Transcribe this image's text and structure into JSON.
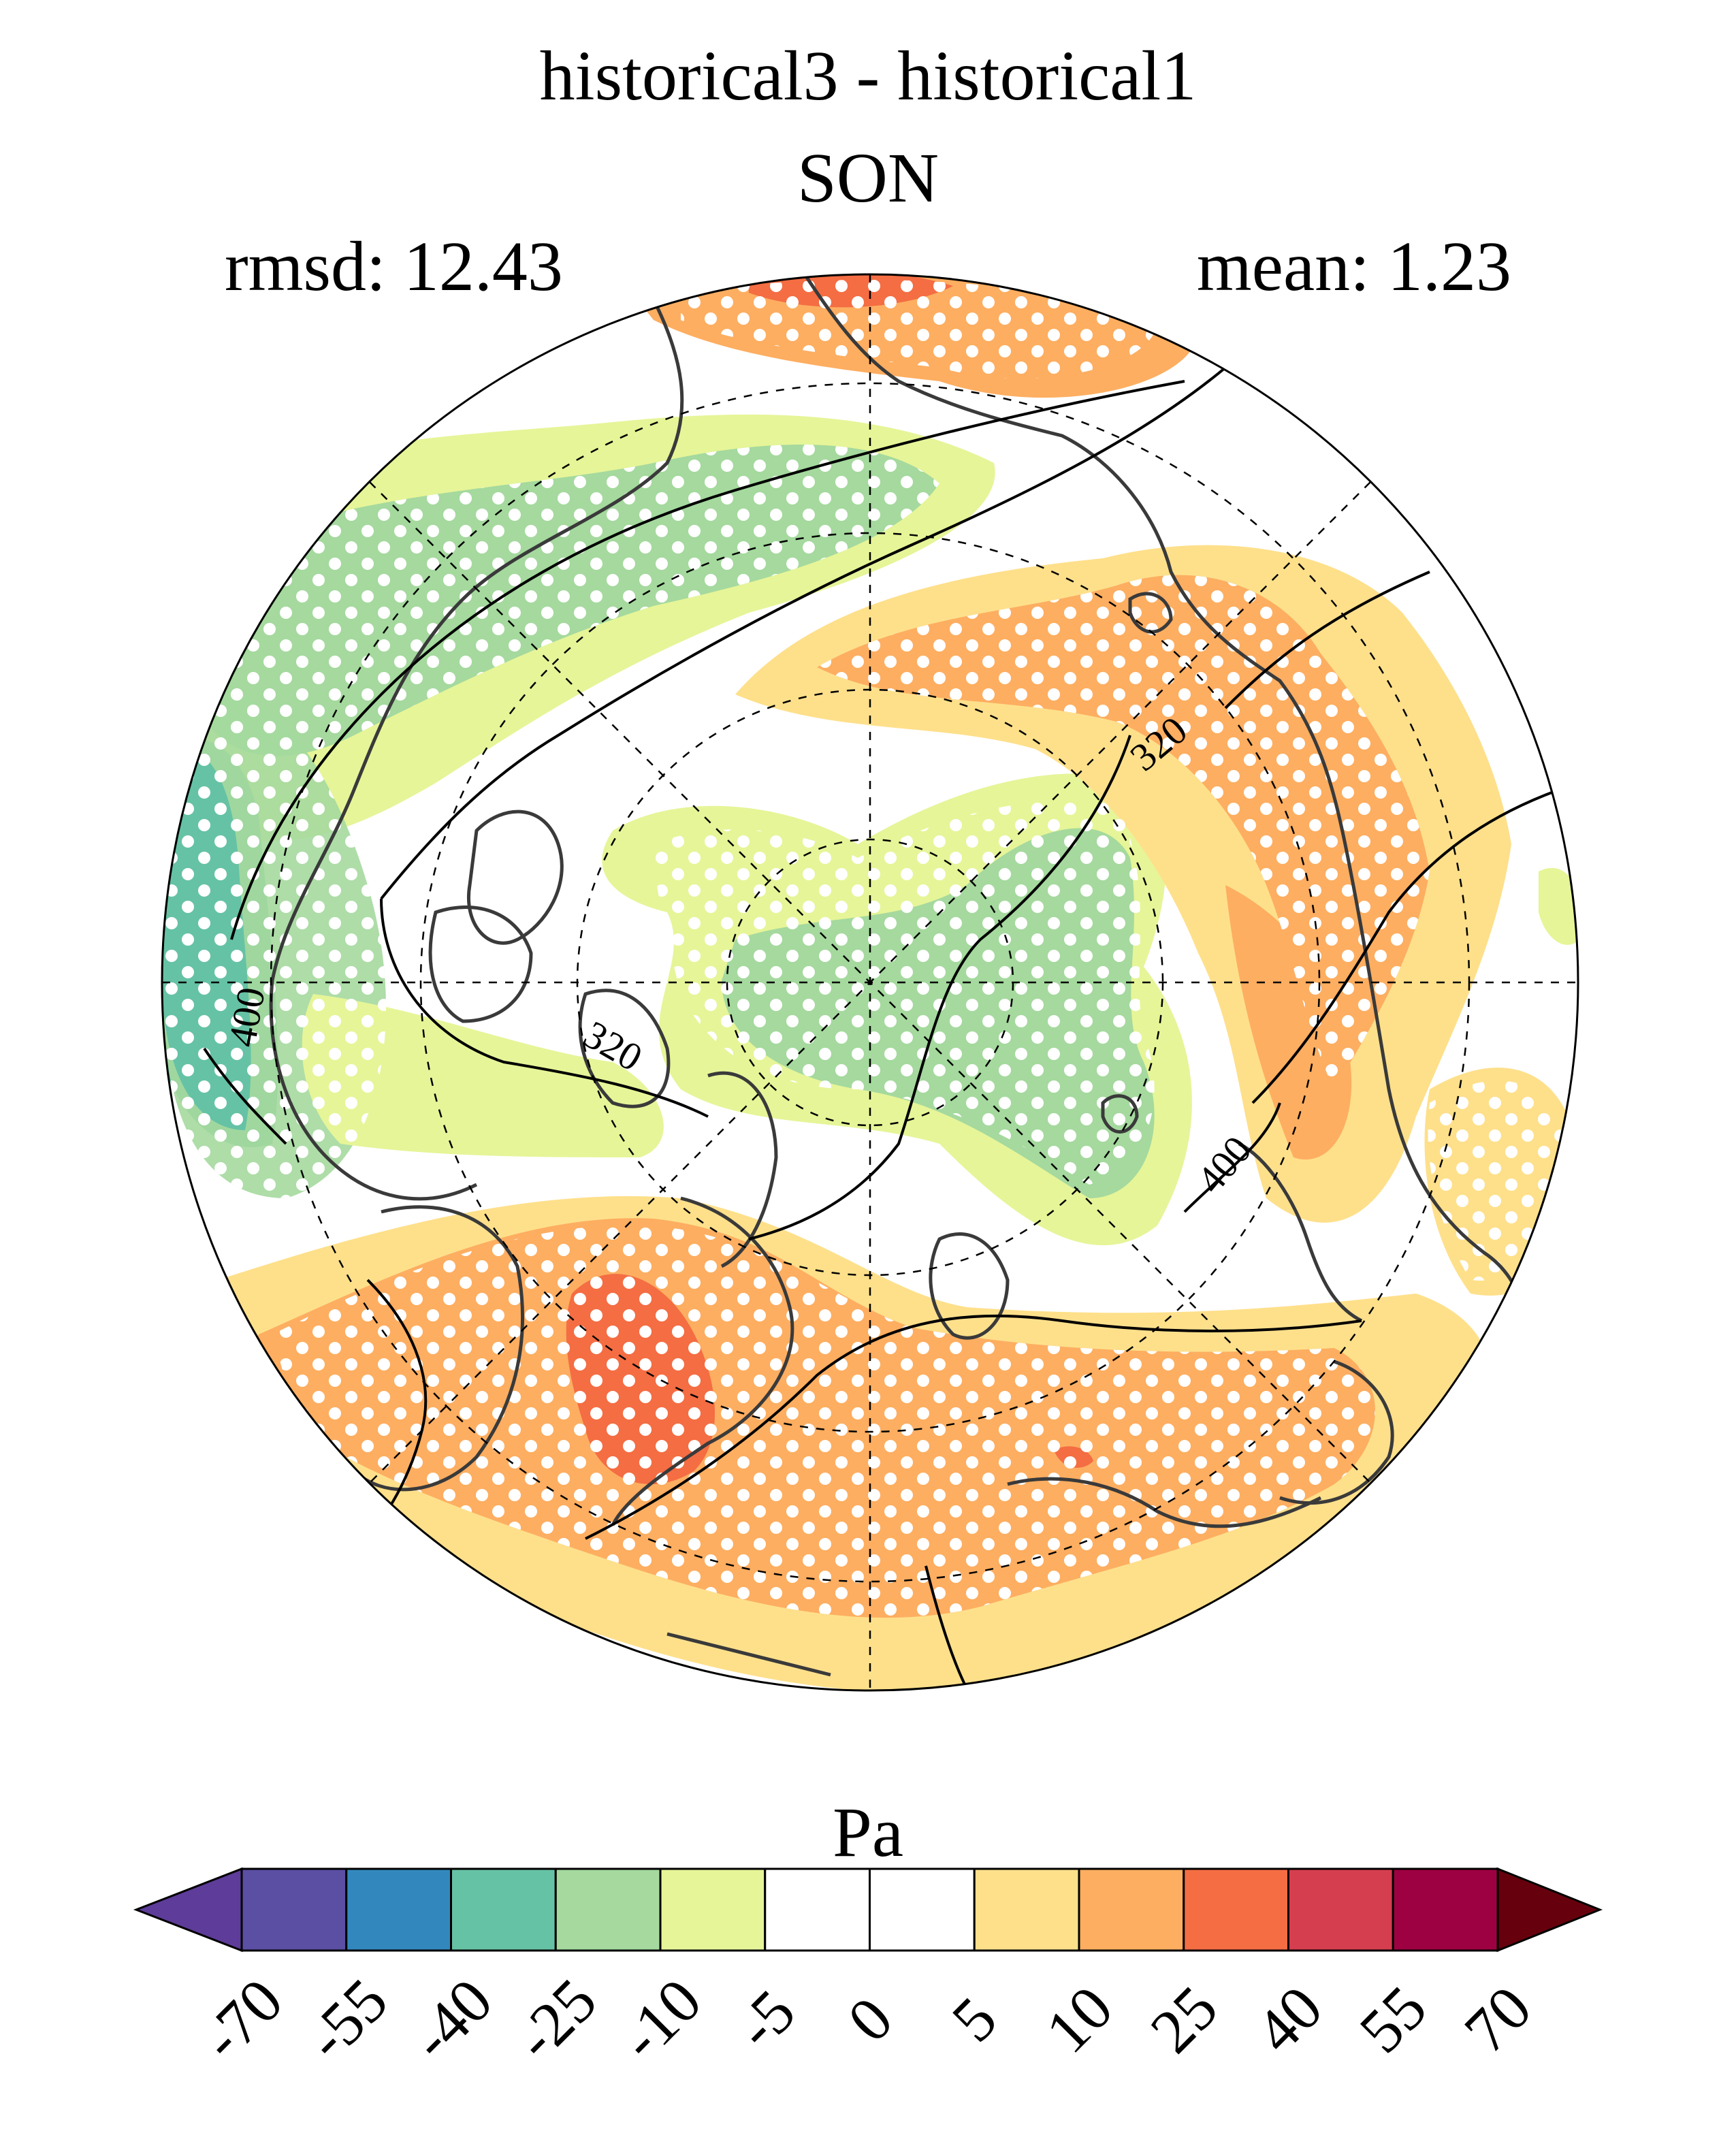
{
  "title": "historical3 - historical1",
  "season": "SON",
  "rmsd_text": "rmsd: 12.43",
  "mean_text": "mean: 1.23",
  "units": "Pa",
  "projection": "north polar stereographic",
  "stippling": "white dots mark significant differences",
  "contour_labels": [
    "320",
    "320",
    "400",
    "400"
  ],
  "colorbar": {
    "levels": [
      "-70",
      "-55",
      "-40",
      "-25",
      "-10",
      "-5",
      "0",
      "5",
      "10",
      "25",
      "40",
      "55",
      "70"
    ],
    "colors": [
      "#5e3c99",
      "#5a4fa3",
      "#3288bd",
      "#66c2a5",
      "#a5d99e",
      "#e6f598",
      "#ffffff",
      "#ffffff",
      "#fee08b",
      "#fdae61",
      "#f46d43",
      "#d53e4f",
      "#9e0142",
      "#67000d"
    ],
    "extend": "both"
  },
  "palette": {
    "orange_light": "#fee08b",
    "orange": "#fdae61",
    "orange_dark": "#f46d43",
    "green_light": "#e6f598",
    "green": "#a5d99e",
    "teal": "#66c2a5",
    "coast": "#3a3a3a"
  }
}
